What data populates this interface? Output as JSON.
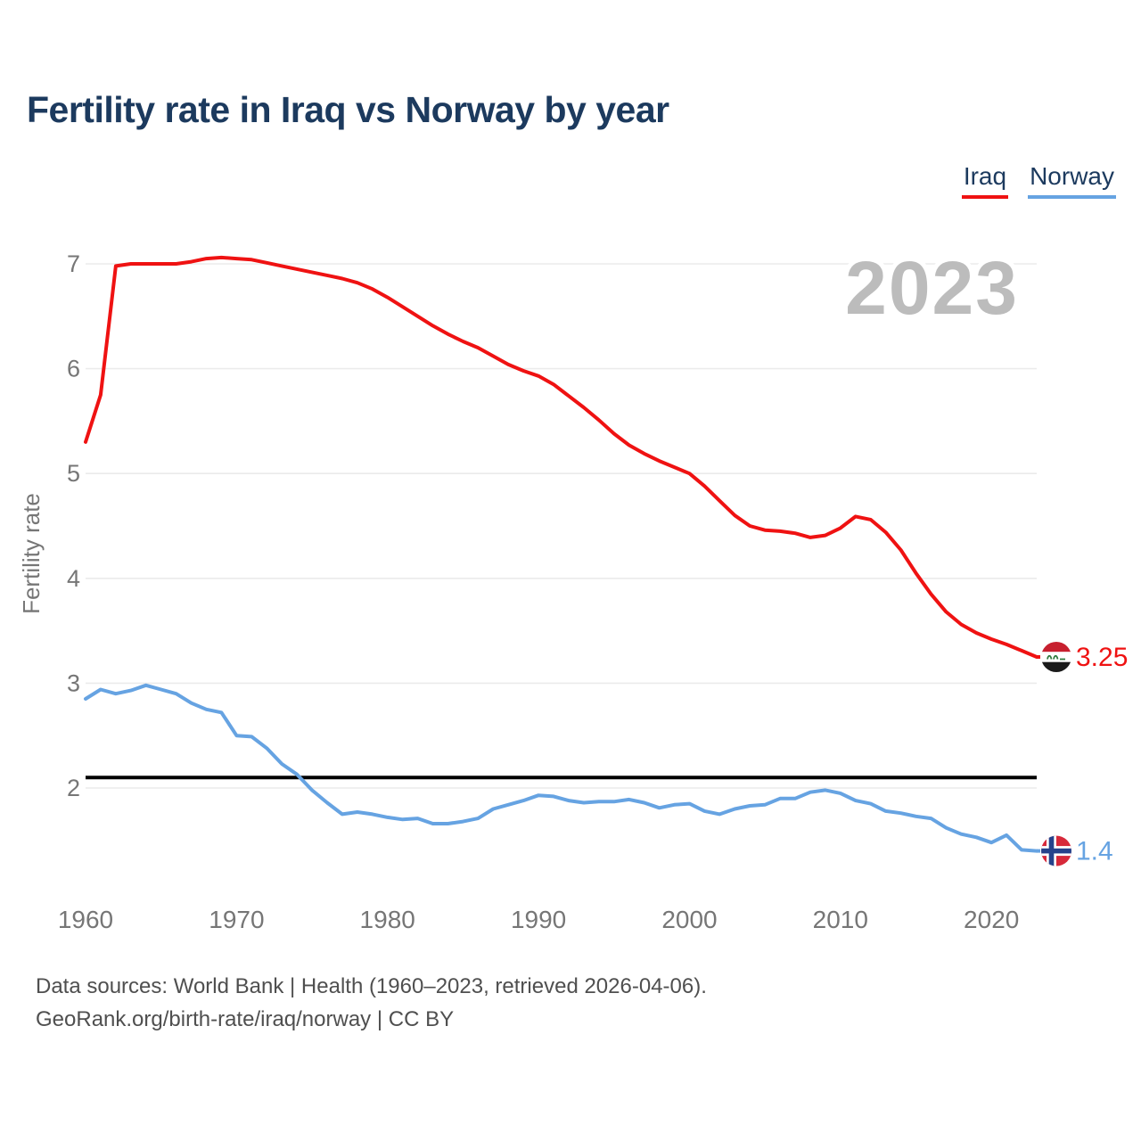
{
  "page": {
    "title": "Fertility rate in Iraq vs Norway by year",
    "watermark": "2023"
  },
  "legend": {
    "position": "top-right",
    "items": [
      {
        "label": "Iraq",
        "color": "#ef1212"
      },
      {
        "label": "Norway",
        "color": "#66a3e2"
      }
    ]
  },
  "footer": {
    "line1": "Data sources: World Bank | Health (1960–2023, retrieved 2026-04-06).",
    "line2": "GeoRank.org/birth-rate/iraq/norway | CC BY"
  },
  "theme": {
    "title_color": "#1c3a5e",
    "tick_color": "#767676",
    "watermark_color": "#bcbcbc",
    "footer_color": "#4f4f4f",
    "grid_color": "#ebebeb"
  },
  "chart_data": {
    "type": "line",
    "title": "Fertility rate in Iraq vs Norway by year",
    "xlabel": "",
    "ylabel": "Fertility rate",
    "grid": "horizontal",
    "legend_position": "top-right",
    "xlim": [
      1960,
      2023
    ],
    "ylim": [
      1.3,
      7.3
    ],
    "x_ticks": [
      1960,
      1970,
      1980,
      1990,
      2000,
      2010,
      2020
    ],
    "y_ticks": [
      7,
      6,
      5,
      4,
      3,
      2
    ],
    "reference_line": {
      "value": 2.1,
      "color": "#000000"
    },
    "x": [
      1960,
      1961,
      1962,
      1963,
      1964,
      1965,
      1966,
      1967,
      1968,
      1969,
      1970,
      1971,
      1972,
      1973,
      1974,
      1975,
      1976,
      1977,
      1978,
      1979,
      1980,
      1981,
      1982,
      1983,
      1984,
      1985,
      1986,
      1987,
      1988,
      1989,
      1990,
      1991,
      1992,
      1993,
      1994,
      1995,
      1996,
      1997,
      1998,
      1999,
      2000,
      2001,
      2002,
      2003,
      2004,
      2005,
      2006,
      2007,
      2008,
      2009,
      2010,
      2011,
      2012,
      2013,
      2014,
      2015,
      2016,
      2017,
      2018,
      2019,
      2020,
      2021,
      2022,
      2023
    ],
    "series": [
      {
        "name": "Iraq",
        "color": "#ef1212",
        "end_label": "3.25",
        "flag": "iraq",
        "values": [
          5.3,
          5.75,
          6.98,
          7.0,
          7.0,
          7.0,
          7.0,
          7.02,
          7.05,
          7.06,
          7.05,
          7.04,
          7.01,
          6.98,
          6.95,
          6.92,
          6.89,
          6.86,
          6.82,
          6.76,
          6.68,
          6.59,
          6.5,
          6.41,
          6.33,
          6.26,
          6.2,
          6.12,
          6.04,
          5.98,
          5.93,
          5.85,
          5.74,
          5.63,
          5.51,
          5.38,
          5.27,
          5.19,
          5.12,
          5.06,
          5.0,
          4.88,
          4.74,
          4.6,
          4.5,
          4.46,
          4.45,
          4.43,
          4.39,
          4.41,
          4.48,
          4.59,
          4.56,
          4.44,
          4.27,
          4.05,
          3.85,
          3.68,
          3.56,
          3.48,
          3.42,
          3.37,
          3.31,
          3.25
        ]
      },
      {
        "name": "Norway",
        "color": "#66a3e2",
        "end_label": "1.4",
        "flag": "norway",
        "values": [
          2.85,
          2.94,
          2.9,
          2.93,
          2.98,
          2.94,
          2.9,
          2.81,
          2.75,
          2.72,
          2.5,
          2.49,
          2.38,
          2.23,
          2.13,
          1.98,
          1.86,
          1.75,
          1.77,
          1.75,
          1.72,
          1.7,
          1.71,
          1.66,
          1.66,
          1.68,
          1.71,
          1.8,
          1.84,
          1.88,
          1.93,
          1.92,
          1.88,
          1.86,
          1.87,
          1.87,
          1.89,
          1.86,
          1.81,
          1.84,
          1.85,
          1.78,
          1.75,
          1.8,
          1.83,
          1.84,
          1.9,
          1.9,
          1.96,
          1.98,
          1.95,
          1.88,
          1.85,
          1.78,
          1.76,
          1.73,
          1.71,
          1.62,
          1.56,
          1.53,
          1.48,
          1.55,
          1.41,
          1.4
        ]
      }
    ]
  }
}
